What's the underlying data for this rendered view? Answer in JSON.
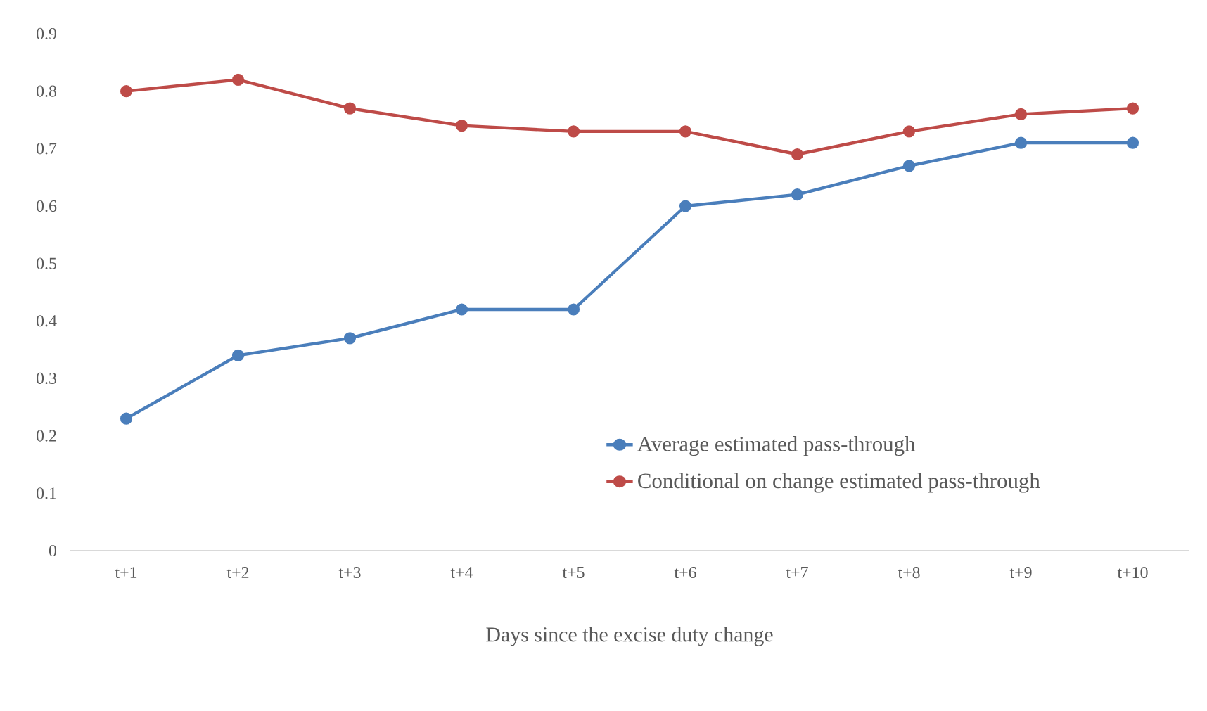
{
  "chart_data": {
    "type": "line",
    "xlabel": "Days since the excise duty change",
    "categories": [
      "t+1",
      "t+2",
      "t+3",
      "t+4",
      "t+5",
      "t+6",
      "t+7",
      "t+8",
      "t+9",
      "t+10"
    ],
    "series": [
      {
        "name": "Average estimated pass-through",
        "color": "#4a7ebb",
        "values": [
          0.23,
          0.34,
          0.37,
          0.42,
          0.42,
          0.6,
          0.62,
          0.67,
          0.71,
          0.71
        ]
      },
      {
        "name": "Conditional on change estimated pass-through",
        "color": "#be4b48",
        "values": [
          0.8,
          0.82,
          0.77,
          0.74,
          0.73,
          0.73,
          0.69,
          0.73,
          0.76,
          0.77
        ]
      }
    ],
    "ylim": [
      0,
      0.9
    ],
    "yticks": [
      0,
      0.1,
      0.2,
      0.3,
      0.4,
      0.5,
      0.6,
      0.7,
      0.8,
      0.9
    ],
    "grid": false,
    "legend": "bottom right",
    "marker": "circle",
    "line_style": "solid"
  }
}
